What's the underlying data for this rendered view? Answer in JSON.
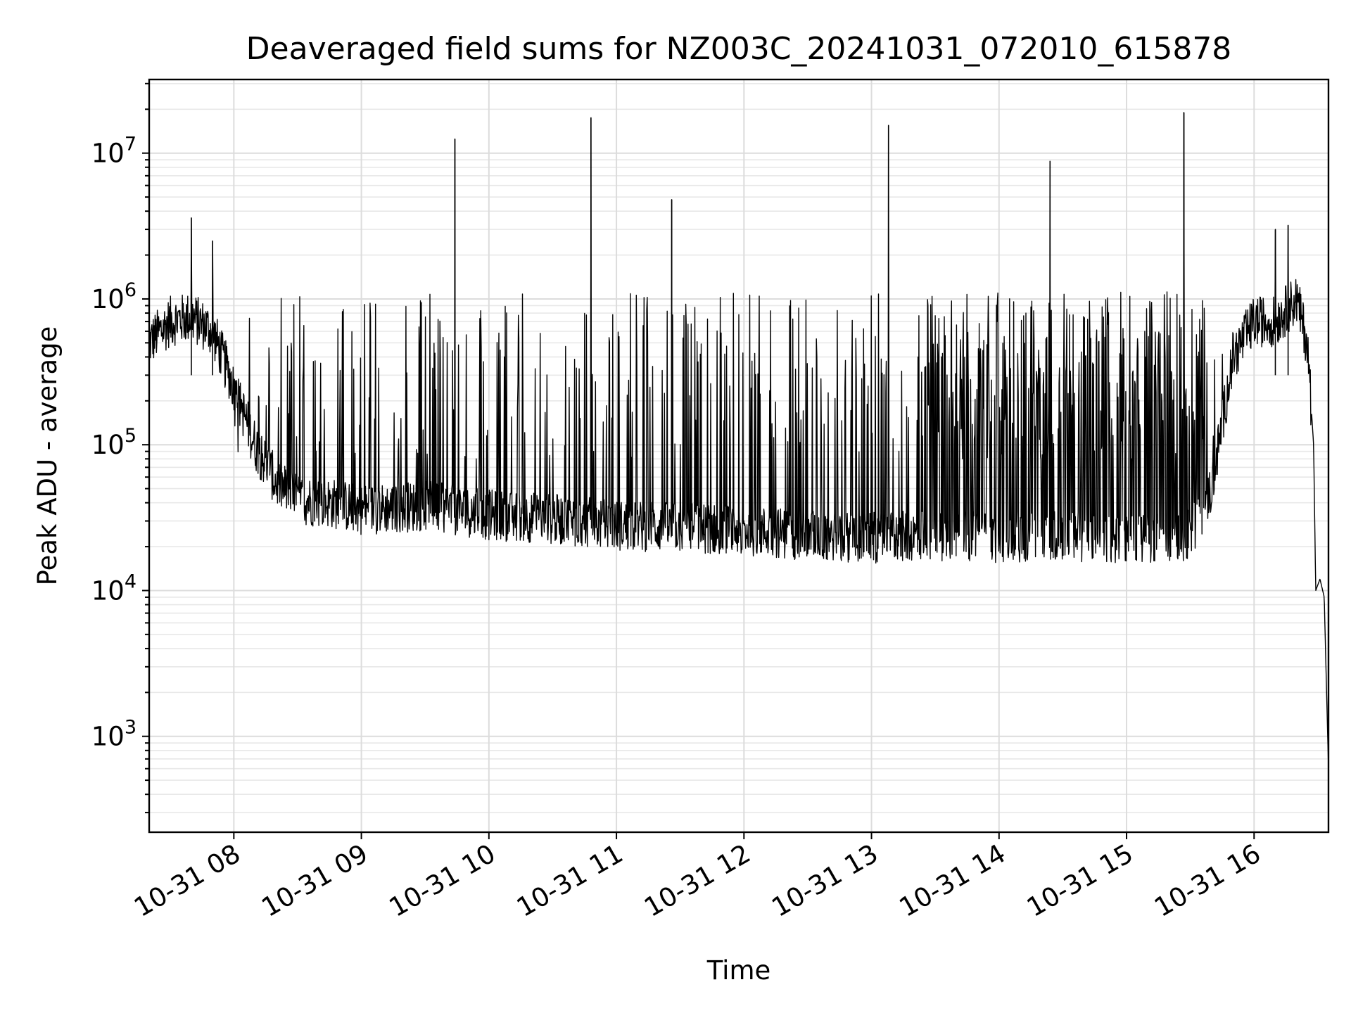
{
  "chart_data": {
    "type": "line",
    "title": "Deaveraged field sums for NZ003C_20241031_072010_615878",
    "xlabel": "Time",
    "ylabel": "Peak ADU - average",
    "yscale": "log",
    "ylim": [
      220,
      32000000
    ],
    "xlim": [
      "2024-10-31 07:20:10",
      "2024-10-31 16:35:00"
    ],
    "grid": "major and minor",
    "line_color": "#000000",
    "x_ticks": [
      "10-31 08",
      "10-31 09",
      "10-31 10",
      "10-31 11",
      "10-31 12",
      "10-31 13",
      "10-31 14",
      "10-31 15",
      "10-31 16"
    ],
    "x_tick_times": [
      "2024-10-31 08:00",
      "2024-10-31 09:00",
      "2024-10-31 10:00",
      "2024-10-31 11:00",
      "2024-10-31 12:00",
      "2024-10-31 13:00",
      "2024-10-31 14:00",
      "2024-10-31 15:00",
      "2024-10-31 16:00"
    ],
    "y_ticks": [
      {
        "base": "10",
        "exp": "3",
        "value": 1000
      },
      {
        "base": "10",
        "exp": "4",
        "value": 10000
      },
      {
        "base": "10",
        "exp": "5",
        "value": 100000
      },
      {
        "base": "10",
        "exp": "6",
        "value": 1000000
      },
      {
        "base": "10",
        "exp": "7",
        "value": 10000000
      }
    ],
    "series": [
      {
        "points": [
          {
            "x": "2024-10-31 07:20",
            "y": 500000
          },
          {
            "x": "2024-10-31 07:30",
            "y": 700000
          },
          {
            "x": "2024-10-31 07:40",
            "y": 750000
          },
          {
            "x": "2024-10-31 07:50",
            "y": 600000
          },
          {
            "x": "2024-10-31 08:00",
            "y": 250000
          },
          {
            "x": "2024-10-31 08:10",
            "y": 100000
          },
          {
            "x": "2024-10-31 08:20",
            "y": 55000
          },
          {
            "x": "2024-10-31 08:30",
            "y": 42000
          },
          {
            "x": "2024-10-31 08:45",
            "y": 40000
          },
          {
            "x": "2024-10-31 09:00",
            "y": 36000
          },
          {
            "x": "2024-10-31 09:30",
            "y": 38000
          },
          {
            "x": "2024-10-31 10:00",
            "y": 33000
          },
          {
            "x": "2024-10-31 10:30",
            "y": 31000
          },
          {
            "x": "2024-10-31 11:00",
            "y": 28000
          },
          {
            "x": "2024-10-31 11:30",
            "y": 27000
          },
          {
            "x": "2024-10-31 12:00",
            "y": 26000
          },
          {
            "x": "2024-10-31 12:30",
            "y": 24000
          },
          {
            "x": "2024-10-31 13:00",
            "y": 23000
          },
          {
            "x": "2024-10-31 13:30",
            "y": 24000
          },
          {
            "x": "2024-10-31 14:00",
            "y": 23000
          },
          {
            "x": "2024-10-31 14:30",
            "y": 24000
          },
          {
            "x": "2024-10-31 15:00",
            "y": 22000
          },
          {
            "x": "2024-10-31 15:30",
            "y": 24000
          },
          {
            "x": "2024-10-31 15:40",
            "y": 50000
          },
          {
            "x": "2024-10-31 15:50",
            "y": 400000
          },
          {
            "x": "2024-10-31 16:00",
            "y": 700000
          },
          {
            "x": "2024-10-31 16:10",
            "y": 700000
          },
          {
            "x": "2024-10-31 16:20",
            "y": 1000000
          },
          {
            "x": "2024-10-31 16:25",
            "y": 500000
          },
          {
            "x": "2024-10-31 16:28",
            "y": 100000
          },
          {
            "x": "2024-10-31 16:29",
            "y": 10000
          },
          {
            "x": "2024-10-31 16:31",
            "y": 12000
          },
          {
            "x": "2024-10-31 16:33",
            "y": 9000
          },
          {
            "x": "2024-10-31 16:35",
            "y": 600
          }
        ],
        "spikes": [
          {
            "x": "2024-10-31 07:40",
            "y": 3600000
          },
          {
            "x": "2024-10-31 07:50",
            "y": 2500000
          },
          {
            "x": "2024-10-31 09:44",
            "y": 12500000
          },
          {
            "x": "2024-10-31 10:48",
            "y": 17500000
          },
          {
            "x": "2024-10-31 11:26",
            "y": 4800000
          },
          {
            "x": "2024-10-31 13:08",
            "y": 15500000
          },
          {
            "x": "2024-10-31 14:24",
            "y": 8800000
          },
          {
            "x": "2024-10-31 15:27",
            "y": 19000000
          },
          {
            "x": "2024-10-31 16:10",
            "y": 3000000
          },
          {
            "x": "2024-10-31 16:16",
            "y": 3200000
          }
        ]
      }
    ]
  }
}
